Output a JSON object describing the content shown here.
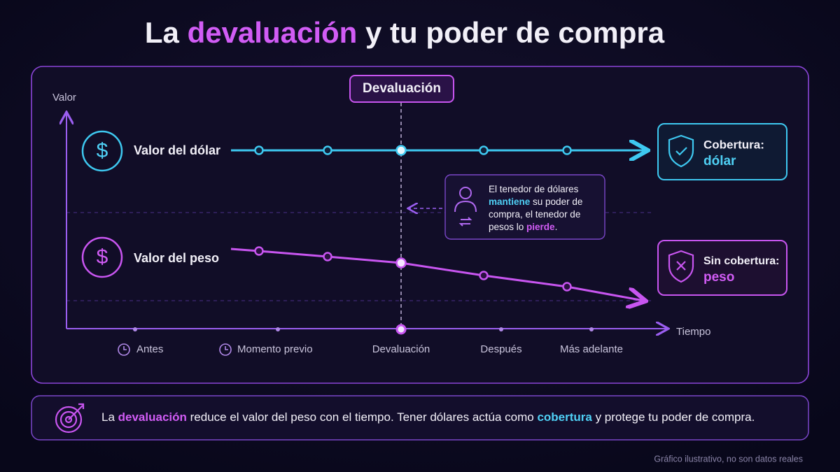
{
  "header": {
    "title": [
      "La ",
      "devaluación",
      " y tu poder de compra"
    ]
  },
  "diagram": {
    "y_axis_label": "Valor",
    "x_axis_label": "Tiempo",
    "event_label": "Devaluación",
    "lines": [
      "Valor del dólar",
      "Valor del peso"
    ],
    "callout": [
      [
        "El tenedor de dólares"
      ],
      [
        "mantiene",
        " su poder de"
      ],
      [
        "compra, el tenedor de"
      ],
      [
        "pesos lo ",
        "pierde",
        "."
      ]
    ],
    "badges": [
      {
        "title": "Cobertura:",
        "value": "dólar"
      },
      {
        "title": "Sin cobertura:",
        "value": "peso"
      }
    ],
    "stages": [
      "Antes",
      "Momento previo",
      "Devaluación",
      "Después",
      "Más adelante"
    ]
  },
  "footer": {
    "text": [
      "La ",
      "devaluación",
      " reduce el valor del peso con el tiempo. Tener dólares actúa como ",
      "cobertura",
      " y protege tu poder de compra."
    ],
    "note": "Gráfico ilustrativo, no son datos reales"
  }
}
